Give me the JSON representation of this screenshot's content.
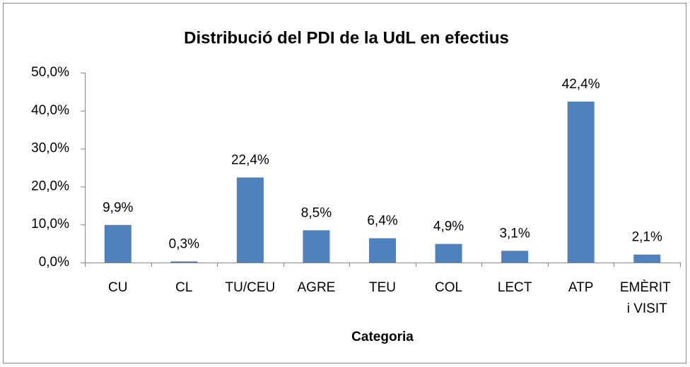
{
  "chart_data": {
    "type": "bar",
    "title": "Distribució del PDI de la UdL en efectius",
    "x_label": "Categoria",
    "categories": [
      "CU",
      "CL",
      "TU/CEU",
      "AGRE",
      "TEU",
      "COL",
      "LECT",
      "ATP",
      "EMÈRIT i VISIT"
    ],
    "values": [
      9.9,
      0.3,
      22.4,
      8.5,
      6.4,
      4.9,
      3.1,
      42.4,
      2.1
    ],
    "value_labels": [
      "9,9%",
      "0,3%",
      "22,4%",
      "8,5%",
      "6,4%",
      "4,9%",
      "3,1%",
      "42,4%",
      "2,1%"
    ],
    "color": "#4f81bd",
    "ylim": [
      0,
      50
    ],
    "yticks": [
      {
        "value": 0,
        "label": "0,0%"
      },
      {
        "value": 10,
        "label": "10,0%"
      },
      {
        "value": 20,
        "label": "20,0%"
      },
      {
        "value": 30,
        "label": "30,0%"
      },
      {
        "value": 40,
        "label": "40,0%"
      },
      {
        "value": 50,
        "label": "50,0%"
      }
    ],
    "grid": false
  }
}
